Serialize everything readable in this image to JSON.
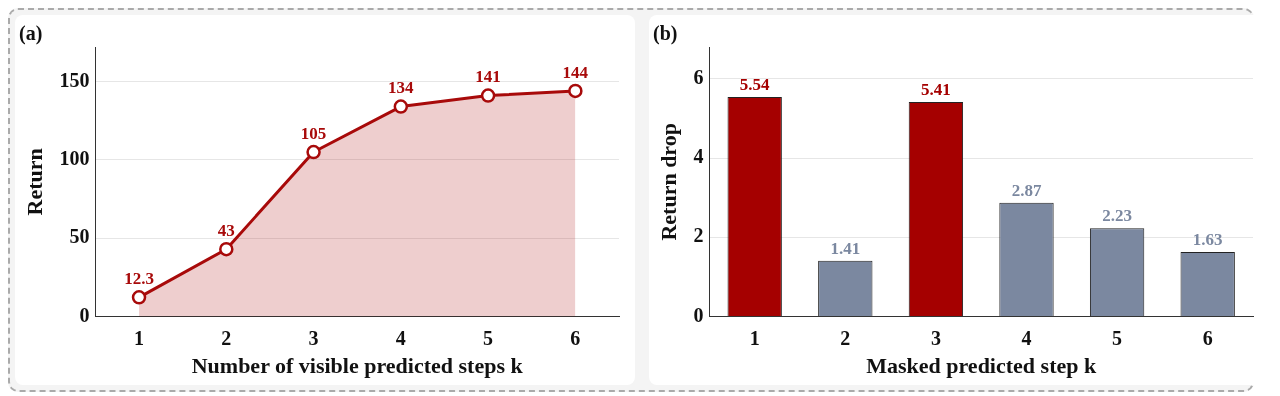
{
  "chart_data": [
    {
      "type": "area",
      "title": "(a)",
      "xlabel": "Number of visible predicted steps k",
      "ylabel": "Return",
      "categories": [
        "1",
        "2",
        "3",
        "4",
        "5",
        "6"
      ],
      "series": [
        {
          "color": "#a80a0a",
          "values": [
            12.3,
            43,
            105,
            134,
            141,
            144
          ]
        }
      ],
      "ylim": [
        0,
        172
      ],
      "yticks": [
        0,
        50,
        100,
        150
      ],
      "grid": "y",
      "marker": "circle",
      "data_labels": true
    },
    {
      "type": "bar",
      "title": "(b)",
      "xlabel": "Masked predicted step k",
      "ylabel": "Return drop",
      "categories": [
        "1",
        "2",
        "3",
        "4",
        "5",
        "6"
      ],
      "values": [
        5.54,
        1.41,
        5.41,
        2.87,
        2.23,
        1.63
      ],
      "colors": [
        "#a50000",
        "#7b88a0",
        "#a50000",
        "#7b88a0",
        "#7b88a0",
        "#7b88a0"
      ],
      "ylim": [
        0,
        6.8
      ],
      "yticks": [
        0,
        2,
        4,
        6
      ],
      "grid": "y",
      "data_labels": true
    }
  ]
}
